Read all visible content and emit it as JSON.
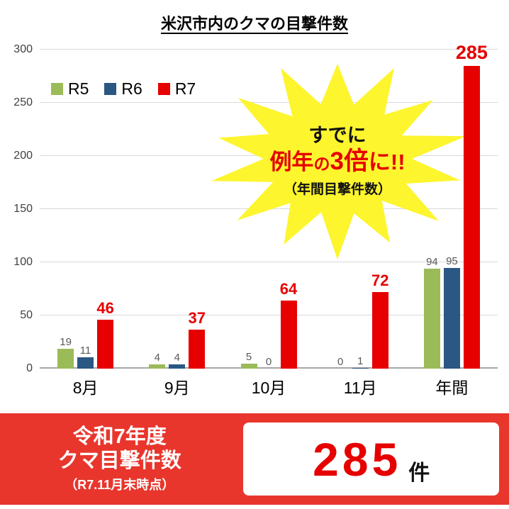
{
  "chart_data": {
    "type": "bar",
    "title": "米沢市内のクマの目撃件数",
    "categories": [
      "8月",
      "9月",
      "10月",
      "11月",
      "年間"
    ],
    "series": [
      {
        "name": "R5",
        "color": "#9bbb59",
        "values": [
          19,
          4,
          5,
          0,
          94
        ]
      },
      {
        "name": "R6",
        "color": "#2a5783",
        "values": [
          11,
          4,
          0,
          1,
          95
        ]
      },
      {
        "name": "R7",
        "color": "#e60000",
        "values": [
          46,
          37,
          64,
          72,
          285
        ]
      }
    ],
    "xlabel": "",
    "ylabel": "",
    "ylim": [
      0,
      300
    ],
    "yticks": [
      0,
      50,
      100,
      150,
      200,
      250,
      300
    ],
    "grid": true,
    "legend_position": "top-left"
  },
  "annotation": {
    "line1": "すでに",
    "line2": {
      "a": "例年",
      "b": "の",
      "c": "3倍",
      "d": "に!!"
    },
    "line3": "（年間目撃件数）",
    "star_color": "#fdf52e"
  },
  "banner": {
    "line1": "令和7年度",
    "line2": "クマ目撃件数",
    "subtitle": "（R7.11月末時点）",
    "count": "285",
    "unit": "件",
    "background": "#e8362d",
    "count_color": "#e60000"
  }
}
